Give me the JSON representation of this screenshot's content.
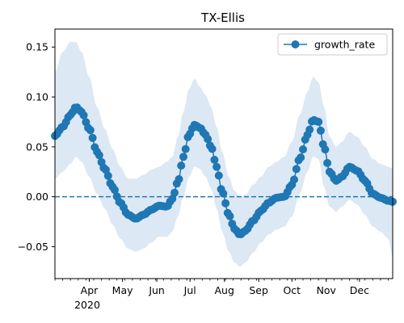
{
  "chart_data": {
    "type": "line",
    "title": "TX-Ellis",
    "xlabel": "",
    "ylabel": "",
    "x_year_label": "2020",
    "x_range": [
      "2020-03-01",
      "2020-12-31"
    ],
    "ylim": [
      -0.082,
      0.168
    ],
    "yticks": [
      -0.05,
      0.0,
      0.05,
      0.1,
      0.15
    ],
    "ytick_labels": [
      "−0.05",
      "0.00",
      "0.05",
      "0.10",
      "0.15"
    ],
    "xticks": [
      {
        "date": "2020-04-01",
        "label": "Apr"
      },
      {
        "date": "2020-05-01",
        "label": "May"
      },
      {
        "date": "2020-06-01",
        "label": "Jun"
      },
      {
        "date": "2020-07-01",
        "label": "Jul"
      },
      {
        "date": "2020-08-01",
        "label": "Aug"
      },
      {
        "date": "2020-09-01",
        "label": "Sep"
      },
      {
        "date": "2020-10-01",
        "label": "Oct"
      },
      {
        "date": "2020-11-01",
        "label": "Nov"
      },
      {
        "date": "2020-12-01",
        "label": "Dec"
      }
    ],
    "reference_line": {
      "y": 0.0,
      "style": "dashed",
      "color": "#1f77b4"
    },
    "legend": {
      "position": "top-right",
      "entries": [
        "growth_rate"
      ]
    },
    "grid": false,
    "series": [
      {
        "name": "growth_rate",
        "color": "#1f77b4",
        "band_color": "#dce8f4",
        "points": [
          {
            "x": "2020-03-01",
            "y": 0.061,
            "lo": 0.018,
            "hi": 0.125
          },
          {
            "x": "2020-03-08",
            "y": 0.07,
            "lo": 0.025,
            "hi": 0.145
          },
          {
            "x": "2020-03-15",
            "y": 0.082,
            "lo": 0.033,
            "hi": 0.155
          },
          {
            "x": "2020-03-20",
            "y": 0.09,
            "lo": 0.04,
            "hi": 0.155
          },
          {
            "x": "2020-03-25",
            "y": 0.085,
            "lo": 0.035,
            "hi": 0.145
          },
          {
            "x": "2020-04-01",
            "y": 0.068,
            "lo": 0.02,
            "hi": 0.12
          },
          {
            "x": "2020-04-08",
            "y": 0.045,
            "lo": 0.003,
            "hi": 0.09
          },
          {
            "x": "2020-04-15",
            "y": 0.028,
            "lo": -0.012,
            "hi": 0.068
          },
          {
            "x": "2020-04-22",
            "y": 0.01,
            "lo": -0.028,
            "hi": 0.048
          },
          {
            "x": "2020-04-29",
            "y": -0.006,
            "lo": -0.042,
            "hi": 0.03
          },
          {
            "x": "2020-05-06",
            "y": -0.018,
            "lo": -0.052,
            "hi": 0.018
          },
          {
            "x": "2020-05-13",
            "y": -0.022,
            "lo": -0.055,
            "hi": 0.018
          },
          {
            "x": "2020-05-20",
            "y": -0.018,
            "lo": -0.052,
            "hi": 0.022
          },
          {
            "x": "2020-05-27",
            "y": -0.013,
            "lo": -0.046,
            "hi": 0.027
          },
          {
            "x": "2020-06-03",
            "y": -0.009,
            "lo": -0.04,
            "hi": 0.03
          },
          {
            "x": "2020-06-10",
            "y": -0.01,
            "lo": -0.04,
            "hi": 0.035
          },
          {
            "x": "2020-06-15",
            "y": -0.002,
            "lo": -0.035,
            "hi": 0.04
          },
          {
            "x": "2020-06-20",
            "y": 0.015,
            "lo": -0.02,
            "hi": 0.06
          },
          {
            "x": "2020-06-25",
            "y": 0.04,
            "lo": 0.0,
            "hi": 0.085
          },
          {
            "x": "2020-06-30",
            "y": 0.062,
            "lo": 0.02,
            "hi": 0.108
          },
          {
            "x": "2020-07-05",
            "y": 0.072,
            "lo": 0.03,
            "hi": 0.118
          },
          {
            "x": "2020-07-10",
            "y": 0.069,
            "lo": 0.028,
            "hi": 0.11
          },
          {
            "x": "2020-07-15",
            "y": 0.062,
            "lo": 0.02,
            "hi": 0.102
          },
          {
            "x": "2020-07-20",
            "y": 0.05,
            "lo": 0.008,
            "hi": 0.09
          },
          {
            "x": "2020-07-25",
            "y": 0.03,
            "lo": -0.012,
            "hi": 0.07
          },
          {
            "x": "2020-07-30",
            "y": 0.005,
            "lo": -0.035,
            "hi": 0.045
          },
          {
            "x": "2020-08-05",
            "y": -0.018,
            "lo": -0.055,
            "hi": 0.02
          },
          {
            "x": "2020-08-10",
            "y": -0.032,
            "lo": -0.066,
            "hi": 0.006
          },
          {
            "x": "2020-08-15",
            "y": -0.038,
            "lo": -0.07,
            "hi": 0.0
          },
          {
            "x": "2020-08-20",
            "y": -0.034,
            "lo": -0.066,
            "hi": 0.002
          },
          {
            "x": "2020-08-27",
            "y": -0.024,
            "lo": -0.056,
            "hi": 0.012
          },
          {
            "x": "2020-09-03",
            "y": -0.014,
            "lo": -0.046,
            "hi": 0.02
          },
          {
            "x": "2020-09-10",
            "y": -0.006,
            "lo": -0.038,
            "hi": 0.03
          },
          {
            "x": "2020-09-17",
            "y": -0.001,
            "lo": -0.033,
            "hi": 0.035
          },
          {
            "x": "2020-09-24",
            "y": 0.0,
            "lo": -0.03,
            "hi": 0.04
          },
          {
            "x": "2020-10-01",
            "y": 0.012,
            "lo": -0.02,
            "hi": 0.055
          },
          {
            "x": "2020-10-08",
            "y": 0.038,
            "lo": 0.003,
            "hi": 0.082
          },
          {
            "x": "2020-10-15",
            "y": 0.062,
            "lo": 0.025,
            "hi": 0.105
          },
          {
            "x": "2020-10-20",
            "y": 0.077,
            "lo": 0.04,
            "hi": 0.12
          },
          {
            "x": "2020-10-25",
            "y": 0.075,
            "lo": 0.038,
            "hi": 0.115
          },
          {
            "x": "2020-10-30",
            "y": 0.05,
            "lo": 0.01,
            "hi": 0.09
          },
          {
            "x": "2020-11-04",
            "y": 0.025,
            "lo": -0.01,
            "hi": 0.06
          },
          {
            "x": "2020-11-10",
            "y": 0.016,
            "lo": -0.015,
            "hi": 0.05
          },
          {
            "x": "2020-11-15",
            "y": 0.02,
            "lo": -0.01,
            "hi": 0.055
          },
          {
            "x": "2020-11-22",
            "y": 0.03,
            "lo": -0.003,
            "hi": 0.065
          },
          {
            "x": "2020-11-29",
            "y": 0.026,
            "lo": -0.008,
            "hi": 0.06
          },
          {
            "x": "2020-12-06",
            "y": 0.016,
            "lo": -0.018,
            "hi": 0.05
          },
          {
            "x": "2020-12-13",
            "y": 0.003,
            "lo": -0.03,
            "hi": 0.038
          },
          {
            "x": "2020-12-20",
            "y": -0.001,
            "lo": -0.035,
            "hi": 0.033
          },
          {
            "x": "2020-12-27",
            "y": -0.004,
            "lo": -0.042,
            "hi": 0.03
          },
          {
            "x": "2020-12-31",
            "y": -0.005,
            "lo": -0.06,
            "hi": 0.028
          }
        ]
      }
    ]
  }
}
